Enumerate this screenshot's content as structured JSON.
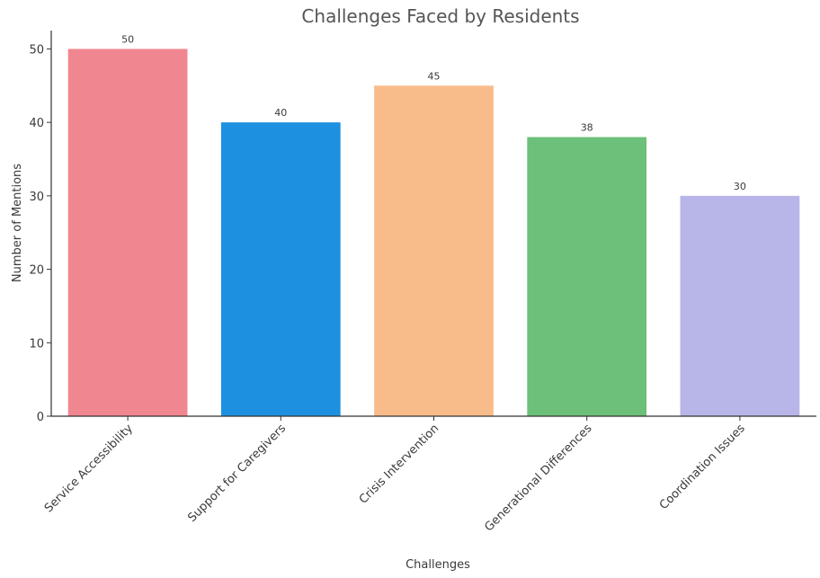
{
  "chart_data": {
    "type": "bar",
    "title": "Challenges Faced by Residents",
    "xlabel": "Challenges",
    "ylabel": "Number of Mentions",
    "categories": [
      "Service Accessibility",
      "Support for Caregivers",
      "Crisis Intervention",
      "Generational Differences",
      "Coordination Issues"
    ],
    "values": [
      50,
      40,
      45,
      38,
      30
    ],
    "data_labels": [
      "50",
      "40",
      "45",
      "38",
      "30"
    ],
    "colors": [
      "#f0868f",
      "#1e90e0",
      "#f8bc8a",
      "#6cc07a",
      "#b8b6e8"
    ],
    "ylim": [
      0,
      52.5
    ],
    "yticks": [
      0,
      10,
      20,
      30,
      40,
      50
    ],
    "ytick_labels": [
      "0",
      "10",
      "20",
      "30",
      "40",
      "50"
    ],
    "grid": false,
    "legend": "none"
  }
}
